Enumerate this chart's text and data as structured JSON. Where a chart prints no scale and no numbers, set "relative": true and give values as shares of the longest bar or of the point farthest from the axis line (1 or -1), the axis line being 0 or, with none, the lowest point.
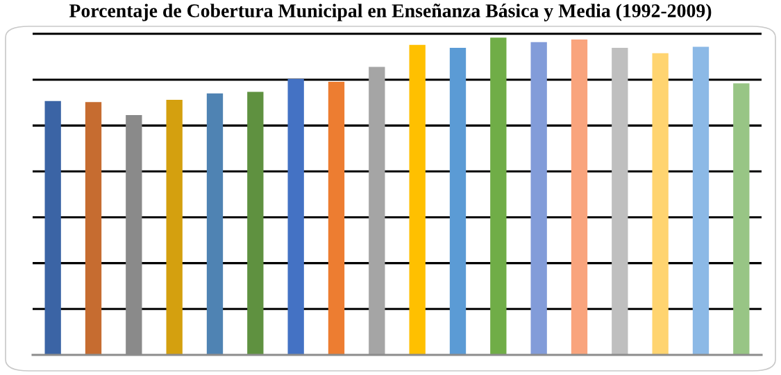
{
  "chart_data": {
    "type": "bar",
    "title": "Porcentaje de Cobertura Municipal en Enseñanza Básica y Media (1992-2009)",
    "categories": [
      null,
      null,
      null,
      null,
      null,
      null,
      null,
      null,
      null,
      null,
      null,
      null,
      null,
      null,
      null,
      null,
      null,
      null
    ],
    "values": [
      0.8,
      0.797,
      0.756,
      0.804,
      0.824,
      0.829,
      0.87,
      0.861,
      0.908,
      0.977,
      0.968,
      1.0,
      0.986,
      0.994,
      0.968,
      0.951,
      0.971,
      0.856
    ],
    "colors": [
      "#3b64a5",
      "#c66c30",
      "#8a8a8a",
      "#d4a00f",
      "#4f83b3",
      "#5f9140",
      "#4472c4",
      "#ed7d31",
      "#a5a5a5",
      "#ffc000",
      "#5b9bd5",
      "#70ad47",
      "#829cd9",
      "#f9a47d",
      "#bfbfbf",
      "#ffd470",
      "#8cb9e6",
      "#98c585"
    ],
    "relative": true,
    "grid": "y"
  }
}
